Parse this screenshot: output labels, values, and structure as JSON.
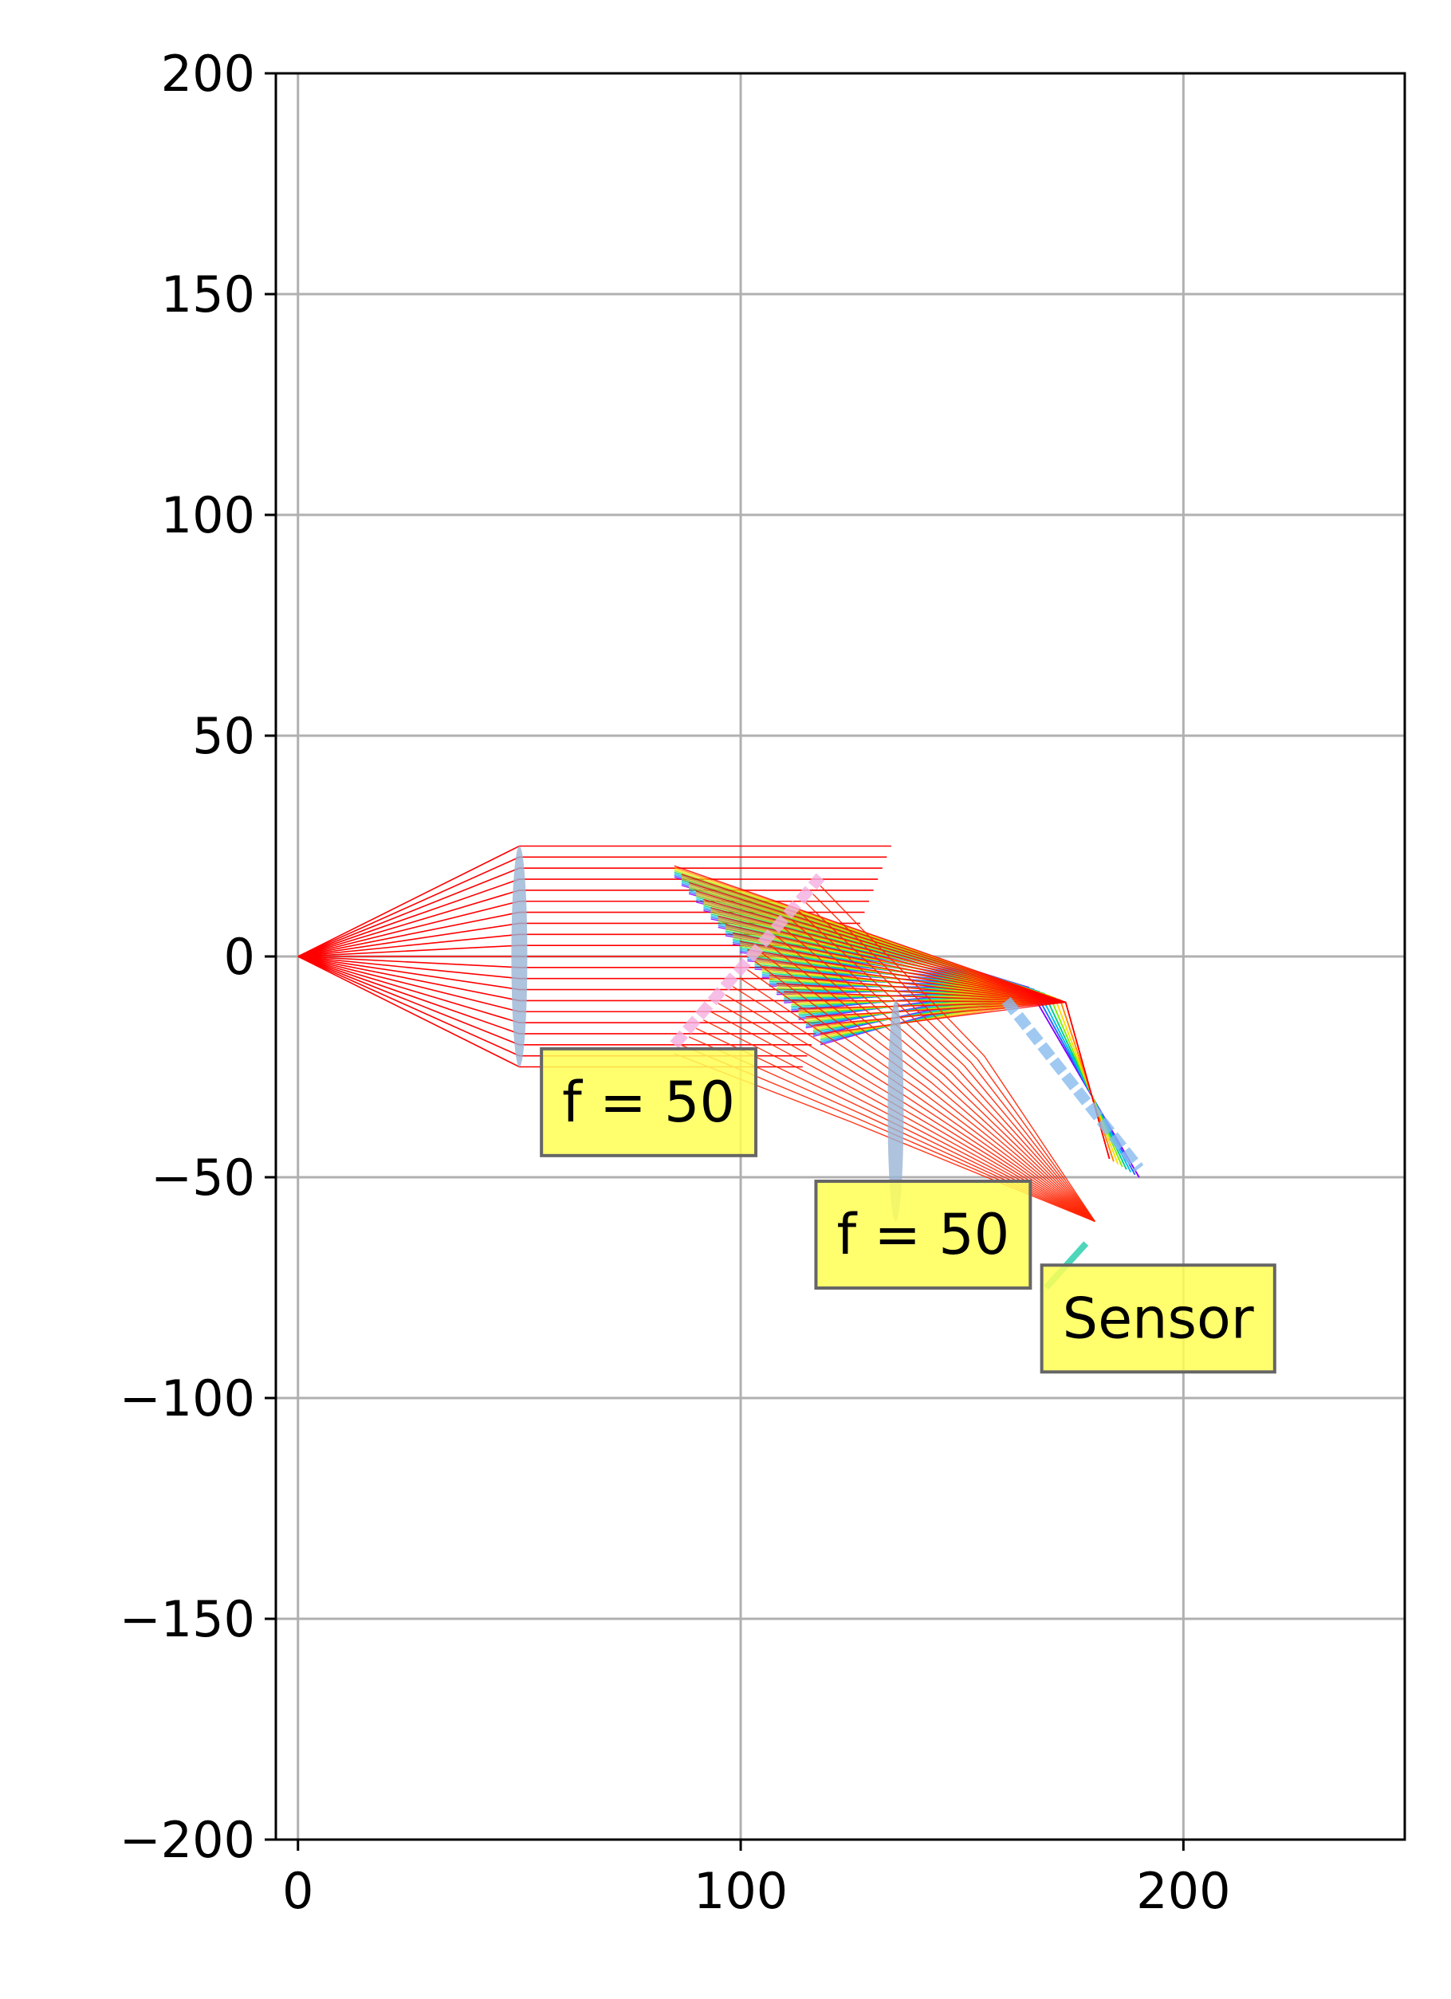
{
  "chart_data": {
    "type": "line",
    "title": "",
    "xlabel": "",
    "ylabel": "",
    "xlim": [
      -5,
      250
    ],
    "ylim": [
      -200,
      200
    ],
    "grid": true,
    "xticks": [
      0,
      100,
      200
    ],
    "yticks": [
      200,
      150,
      100,
      50,
      0,
      -50,
      -100,
      -150,
      -200
    ],
    "xtick_labels": [
      "0",
      "100",
      "200"
    ],
    "ytick_labels": [
      "200",
      "150",
      "100",
      "50",
      "0",
      "−50",
      "−100",
      "−150",
      "−200"
    ],
    "ray_source": [
      0,
      0
    ],
    "ray_heights": [
      25,
      22.5,
      20,
      17.5,
      15,
      12.5,
      10,
      7.5,
      5,
      2.5,
      0,
      -2.5,
      -5,
      -7.5,
      -10,
      -12.5,
      -15,
      -17.5,
      -20,
      -22.5,
      -25
    ],
    "ray_colors": [
      "#ff0000",
      "#ff8800",
      "#ffdd00",
      "#88ee00",
      "#00cc88",
      "#00bbee",
      "#2266ff",
      "#8800ff"
    ],
    "elements": [
      {
        "type": "lens",
        "center": [
          50,
          0
        ],
        "half_height": 25,
        "color": "#9ab4d4"
      },
      {
        "type": "mirror",
        "start": [
          85,
          -20
        ],
        "end": [
          118,
          18
        ],
        "color": "#f4aee0"
      },
      {
        "type": "mirror",
        "start": [
          160,
          -10
        ],
        "end": [
          190,
          -48
        ],
        "color": "#88bbee"
      },
      {
        "type": "lens",
        "center": [
          135,
          -35
        ],
        "half_height": 25,
        "color": "#9ab4d4"
      },
      {
        "type": "sensor",
        "start": [
          169,
          -75
        ],
        "end": [
          178,
          -65
        ],
        "color": "#22ccaa"
      }
    ],
    "annotations": [
      {
        "text": "f = 50",
        "x": 55,
        "y": -33
      },
      {
        "text": "f = 50",
        "x": 117,
        "y": -63
      },
      {
        "text": "Sensor",
        "x": 168,
        "y": -82
      }
    ],
    "annotation_style": {
      "face": "#ffff55",
      "edge": "#666666"
    }
  }
}
